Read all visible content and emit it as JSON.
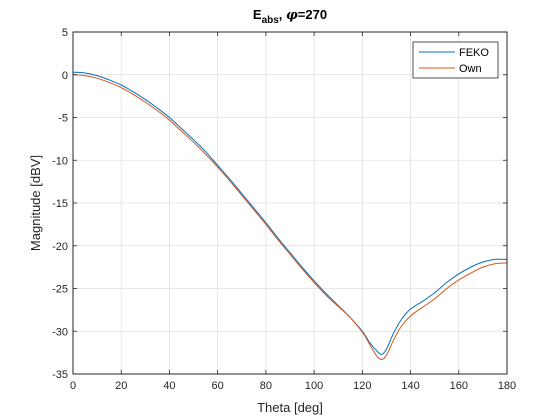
{
  "chart_data": {
    "type": "line",
    "title": {
      "main": "E",
      "subscript": "abs",
      "separator": ", ",
      "symbol": "φ",
      "suffix": "=270"
    },
    "xlabel": "Theta [deg]",
    "ylabel": "Magnitude [dBV]",
    "xlim": [
      0,
      180
    ],
    "ylim": [
      -35,
      5
    ],
    "xticks": [
      0,
      20,
      40,
      60,
      80,
      100,
      120,
      140,
      160,
      180
    ],
    "yticks": [
      5,
      0,
      -5,
      -10,
      -15,
      -20,
      -25,
      -30,
      -35
    ],
    "grid": true,
    "legend_position": "top-right",
    "series": [
      {
        "name": "FEKO",
        "color": "#0072BD",
        "x": [
          0,
          5,
          10,
          15,
          20,
          25,
          30,
          35,
          40,
          45,
          50,
          55,
          60,
          65,
          70,
          75,
          80,
          85,
          90,
          95,
          100,
          105,
          110,
          115,
          120,
          123,
          126,
          128,
          130,
          133,
          136,
          140,
          145,
          150,
          155,
          160,
          165,
          170,
          175,
          180
        ],
        "values": [
          0.3,
          0.2,
          -0.1,
          -0.6,
          -1.2,
          -2.0,
          -2.9,
          -3.9,
          -5.0,
          -6.3,
          -7.6,
          -9.0,
          -10.6,
          -12.2,
          -13.9,
          -15.6,
          -17.3,
          -19.1,
          -20.8,
          -22.5,
          -24.1,
          -25.6,
          -27.0,
          -28.4,
          -30.0,
          -31.3,
          -32.3,
          -32.7,
          -32.1,
          -30.2,
          -28.7,
          -27.4,
          -26.5,
          -25.5,
          -24.3,
          -23.3,
          -22.5,
          -21.9,
          -21.6,
          -21.6
        ]
      },
      {
        "name": "Own",
        "color": "#D95319",
        "x": [
          0,
          5,
          10,
          15,
          20,
          25,
          30,
          35,
          40,
          45,
          50,
          55,
          60,
          65,
          70,
          75,
          80,
          85,
          90,
          95,
          100,
          105,
          110,
          115,
          120,
          123,
          126,
          128,
          130,
          133,
          136,
          140,
          145,
          150,
          155,
          160,
          165,
          170,
          175,
          180
        ],
        "values": [
          0.0,
          -0.1,
          -0.4,
          -0.9,
          -1.5,
          -2.3,
          -3.2,
          -4.2,
          -5.3,
          -6.6,
          -7.9,
          -9.3,
          -10.8,
          -12.4,
          -14.1,
          -15.8,
          -17.5,
          -19.3,
          -21.0,
          -22.7,
          -24.3,
          -25.8,
          -27.1,
          -28.4,
          -30.1,
          -31.5,
          -32.9,
          -33.3,
          -32.8,
          -31.0,
          -29.5,
          -28.2,
          -27.2,
          -26.2,
          -25.0,
          -24.0,
          -23.2,
          -22.5,
          -22.1,
          -22.0
        ]
      }
    ]
  }
}
